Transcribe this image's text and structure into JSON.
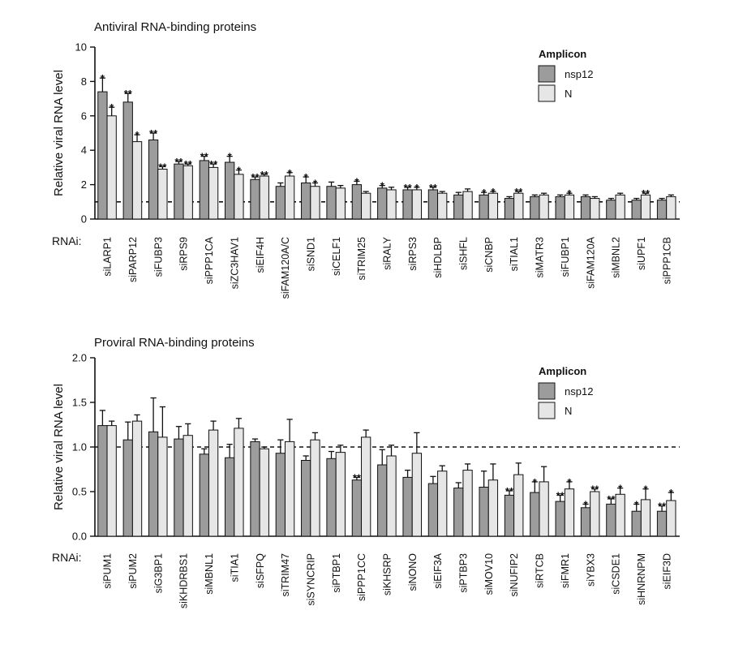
{
  "chart_data": [
    {
      "type": "bar",
      "title": "Antiviral RNA-binding proteins",
      "ylabel": "Relative viral RNA level",
      "xlabel": "RNAi:",
      "ylim": [
        0,
        10
      ],
      "yticks": [
        "0",
        "2",
        "4",
        "6",
        "8",
        "10"
      ],
      "reference_line": 1,
      "legend": {
        "title": "Amplicon",
        "entries": [
          "nsp12",
          "N"
        ],
        "position": "top-right"
      },
      "colors": {
        "nsp12": "#9c9c9c",
        "N": "#e6e6e6"
      },
      "categories": [
        "siLARP1",
        "siPARP12",
        "siFUBP3",
        "siRPS9",
        "siPPP1CA",
        "siZC3HAV1",
        "siEIF4H",
        "siFAM120A/C",
        "siSND1",
        "siCELF1",
        "siTRIM25",
        "siRALY",
        "siRPS3",
        "siHDLBP",
        "siSHFL",
        "siCNBP",
        "siTIAL1",
        "siMATR3",
        "siFUBP1",
        "siFAM120A",
        "siMBNL2",
        "siUPF1",
        "siPPP1CB"
      ],
      "series": [
        {
          "name": "nsp12",
          "values": [
            7.4,
            6.8,
            4.6,
            3.2,
            3.4,
            3.3,
            2.3,
            1.9,
            2.1,
            1.9,
            2.0,
            1.8,
            1.7,
            1.7,
            1.4,
            1.4,
            1.2,
            1.3,
            1.3,
            1.3,
            1.1,
            1.1,
            1.1
          ],
          "errors": [
            0.8,
            0.5,
            0.4,
            0.15,
            0.25,
            0.35,
            0.15,
            0.2,
            0.35,
            0.25,
            0.2,
            0.15,
            0.15,
            0.15,
            0.15,
            0.15,
            0.1,
            0.1,
            0.1,
            0.1,
            0.1,
            0.1,
            0.1
          ],
          "significance": [
            "*",
            "**",
            "**",
            "**",
            "**",
            "*",
            "**",
            "",
            "*",
            "",
            "*",
            "*",
            "**",
            "**",
            "",
            "*",
            "",
            "",
            "",
            "",
            "",
            "",
            ""
          ]
        },
        {
          "name": "N",
          "values": [
            6.0,
            4.5,
            2.9,
            3.1,
            3.0,
            2.6,
            2.5,
            2.5,
            1.9,
            1.8,
            1.5,
            1.7,
            1.7,
            1.5,
            1.6,
            1.5,
            1.5,
            1.4,
            1.4,
            1.2,
            1.4,
            1.4,
            1.3
          ],
          "errors": [
            0.5,
            0.4,
            0.15,
            0.1,
            0.2,
            0.25,
            0.1,
            0.2,
            0.2,
            0.15,
            0.1,
            0.15,
            0.15,
            0.1,
            0.15,
            0.1,
            0.1,
            0.1,
            0.1,
            0.1,
            0.1,
            0.1,
            0.1
          ],
          "significance": [
            "*",
            "*",
            "**",
            "**",
            "**",
            "*",
            "**",
            "*",
            "*",
            "",
            "",
            "",
            "*",
            "",
            "",
            "*",
            "**",
            "",
            "*",
            "",
            "",
            "**",
            ""
          ]
        }
      ]
    },
    {
      "type": "bar",
      "title": "Proviral RNA-binding proteins",
      "ylabel": "Relative viral RNA level",
      "xlabel": "RNAi:",
      "ylim": [
        0,
        2.0
      ],
      "yticks": [
        "0.0",
        "0.5",
        "1.0",
        "1.5",
        "2.0"
      ],
      "reference_line": 1.0,
      "legend": {
        "title": "Amplicon",
        "entries": [
          "nsp12",
          "N"
        ],
        "position": "top-right"
      },
      "colors": {
        "nsp12": "#9c9c9c",
        "N": "#e6e6e6"
      },
      "categories": [
        "siPUM1",
        "siPUM2",
        "siG3BP1",
        "siKHDRBS1",
        "siMBNL1",
        "siTIA1",
        "siSFPQ",
        "siTRIM47",
        "siSYNCRIP",
        "siPTBP1",
        "siPPP1CC",
        "siKHSRP",
        "siNONO",
        "siEIF3A",
        "siPTBP3",
        "siMOV10",
        "siNUFIP2",
        "siRTCB",
        "siFMR1",
        "siYBX3",
        "siCSDE1",
        "siHNRNPM",
        "siEIF3D"
      ],
      "series": [
        {
          "name": "nsp12",
          "values": [
            1.24,
            1.08,
            1.17,
            1.09,
            0.92,
            0.88,
            1.06,
            0.93,
            0.85,
            0.87,
            0.63,
            0.8,
            0.66,
            0.59,
            0.54,
            0.55,
            0.46,
            0.49,
            0.39,
            0.32,
            0.36,
            0.28,
            0.28
          ],
          "errors": [
            0.17,
            0.2,
            0.38,
            0.14,
            0.06,
            0.15,
            0.03,
            0.15,
            0.05,
            0.08,
            0.03,
            0.17,
            0.08,
            0.08,
            0.06,
            0.18,
            0.05,
            0.12,
            0.07,
            0.04,
            0.06,
            0.08,
            0.06
          ],
          "significance": [
            "",
            "",
            "",
            "",
            "",
            "",
            "",
            "",
            "",
            "",
            "**",
            "",
            "",
            "",
            "",
            "",
            "**",
            "*",
            "**",
            "*",
            "**",
            "*",
            "**"
          ]
        },
        {
          "name": "N",
          "values": [
            1.24,
            1.29,
            1.11,
            1.13,
            1.19,
            1.21,
            0.98,
            1.06,
            1.08,
            0.94,
            1.11,
            0.9,
            0.93,
            0.73,
            0.74,
            0.63,
            0.69,
            0.61,
            0.53,
            0.5,
            0.47,
            0.41,
            0.4
          ],
          "errors": [
            0.05,
            0.07,
            0.34,
            0.13,
            0.1,
            0.11,
            0.02,
            0.25,
            0.08,
            0.08,
            0.08,
            0.12,
            0.23,
            0.06,
            0.07,
            0.18,
            0.13,
            0.17,
            0.08,
            0.03,
            0.07,
            0.12,
            0.09
          ],
          "significance": [
            "",
            "",
            "",
            "",
            "",
            "",
            "",
            "",
            "",
            "",
            "",
            "",
            "",
            "",
            "",
            "",
            "",
            "",
            "*",
            "**",
            "*",
            "*",
            "*"
          ]
        }
      ]
    }
  ]
}
